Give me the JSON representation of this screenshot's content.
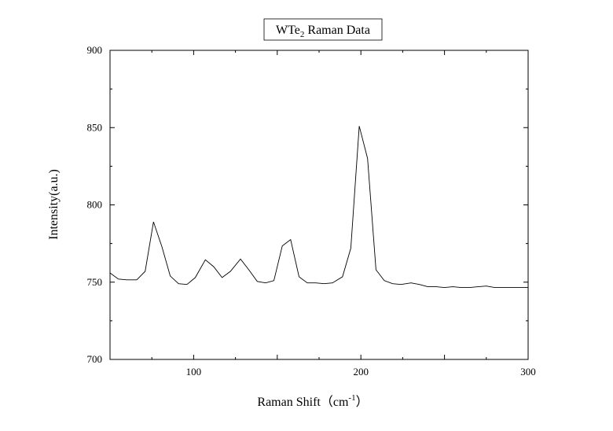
{
  "chart_data": {
    "type": "line",
    "title": "WTe",
    "title_subscript": "2",
    "title_rest": " Raman Data",
    "xlabel": "Raman Shift（cm",
    "xlabel_superscript": "-1",
    "xlabel_close": "）",
    "ylabel": "Intensity(a.u.)",
    "xlim": [
      50,
      300
    ],
    "ylim": [
      700,
      900
    ],
    "xticks": [
      100,
      200,
      300
    ],
    "yticks": [
      700,
      750,
      800,
      850,
      900
    ],
    "grid": false,
    "legend": "none",
    "line_color": "#000000",
    "series": [
      {
        "x": [
          50,
          55,
          60,
          66,
          71,
          76,
          81,
          86,
          91,
          96,
          101,
          107,
          112,
          117,
          122,
          128,
          133,
          138,
          143,
          148,
          153,
          158,
          163,
          168,
          173,
          178,
          183,
          189,
          194,
          199,
          204,
          209,
          214,
          219,
          224,
          230,
          235,
          240,
          245,
          250,
          255,
          260,
          265,
          270,
          275,
          280,
          286,
          291,
          296,
          300
        ],
        "y": [
          756,
          752,
          751.5,
          751.5,
          757,
          789,
          773,
          754,
          749,
          748.5,
          753,
          764.5,
          760,
          753,
          757,
          765,
          758,
          750.5,
          749.5,
          751,
          773.5,
          777.5,
          753.5,
          749.5,
          749.5,
          749,
          749.5,
          753.5,
          772,
          851,
          830,
          758,
          751,
          749,
          748.5,
          749.5,
          748.5,
          747,
          747,
          746.5,
          747,
          746.5,
          746.5,
          747,
          747.5,
          746.5,
          746.5,
          746.5,
          746.5,
          746.5
        ]
      }
    ]
  }
}
